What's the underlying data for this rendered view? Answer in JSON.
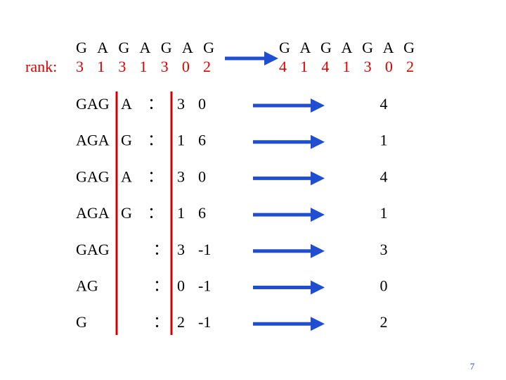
{
  "left_header": {
    "letters": "G A G A G A G",
    "rank_label": "rank:",
    "ranks": "3 1 3 1 3 0 2"
  },
  "right_header": {
    "letters": "G A G A G A G",
    "ranks": "4 1 4 1 3 0 2"
  },
  "rows": [
    {
      "head": "GAG",
      "tail": "A",
      "colon": "：",
      "first": "3",
      "second": "0",
      "new_rank": "4"
    },
    {
      "head": "AGA",
      "tail": "G",
      "colon": "：",
      "first": "1",
      "second": "6",
      "new_rank": "1"
    },
    {
      "head": "GAG",
      "tail": "A",
      "colon": "：",
      "first": "3",
      "second": "0",
      "new_rank": "4"
    },
    {
      "head": "AGA",
      "tail": "G",
      "colon": "：",
      "first": "1",
      "second": "6",
      "new_rank": "1"
    },
    {
      "head": "GAG",
      "colon": "：",
      "first": "3",
      "second": "-1",
      "new_rank": "3"
    },
    {
      "head": "AG",
      "colon": "：",
      "first": "0",
      "second": "-1",
      "new_rank": "0"
    },
    {
      "head": "G",
      "colon": "：",
      "first": "2",
      "second": "-1",
      "new_rank": "2"
    }
  ],
  "page_number": "7"
}
